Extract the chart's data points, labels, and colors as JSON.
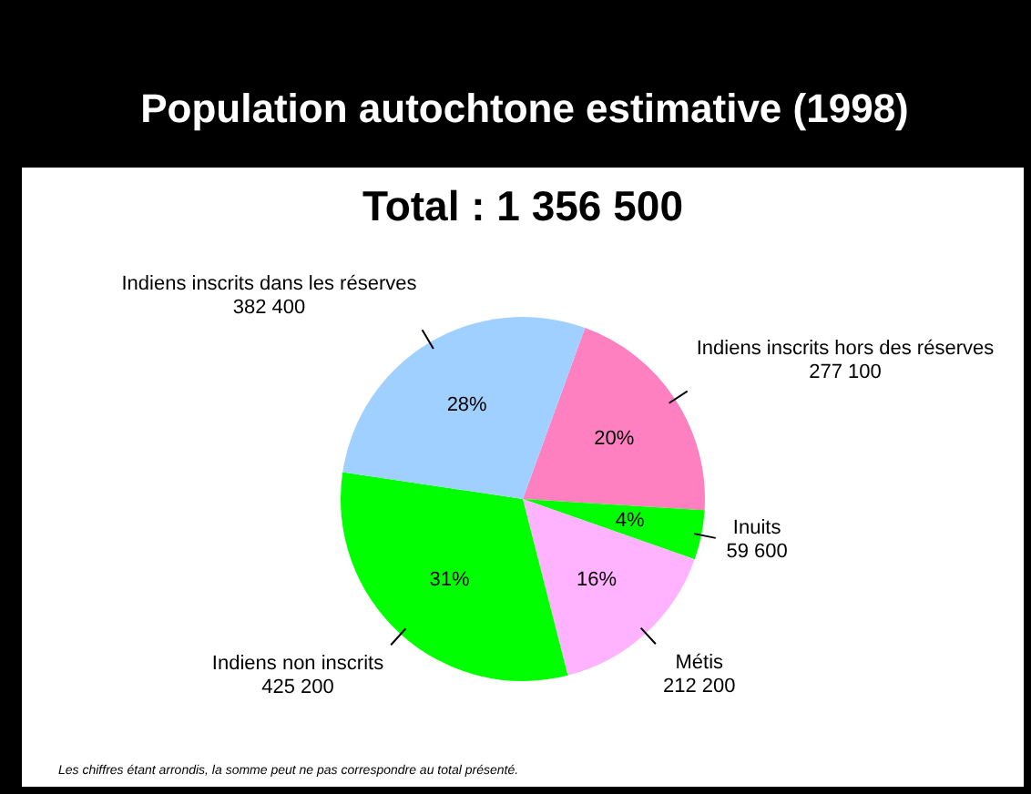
{
  "chart_data": {
    "type": "pie",
    "title": "Population autochtone estimative (1998)",
    "subtitle": "Total : 1 356 500",
    "categories": [
      "Indiens inscrits hors des réserves",
      "Inuits",
      "Métis",
      "Indiens non inscrits",
      "Indiens inscrits dans les réserves"
    ],
    "values": [
      277100,
      59600,
      212200,
      425200,
      382400
    ],
    "colors": [
      "#ff80c0",
      "#00ff00",
      "#ffb3ff",
      "#00ff00",
      "#a0d0ff"
    ],
    "value_labels": [
      "277 100",
      "59 600",
      "212 200",
      "425 200",
      "382 400"
    ],
    "annotations": [
      {
        "text": "20%",
        "x": "Indiens inscrits hors des réserves"
      },
      {
        "text": "4%",
        "x": "Inuits"
      },
      {
        "text": "16%",
        "x": "Métis"
      },
      {
        "text": "31%",
        "x": "Indiens non inscrits"
      },
      {
        "text": "28%",
        "x": "Indiens inscrits dans les réserves"
      },
      "Les chiffres étant arrondis, la somme peut ne pas correspondre au total présenté."
    ]
  }
}
